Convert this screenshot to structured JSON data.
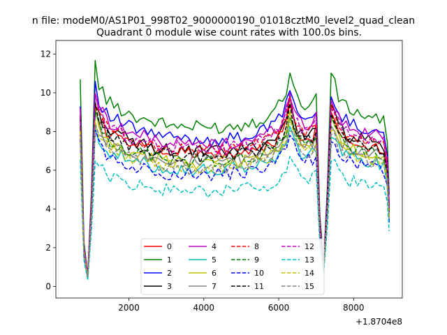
{
  "chart_data": {
    "type": "line",
    "suptitle": "n file: modeM0/AS1P01_998T02_9000000190_01018cztM0_level2_quad_clean",
    "title": "Quadrant 0 module wise count rates with 100.0s bins.",
    "xlabel": "",
    "ylabel": "",
    "offset_text": "+1.8704e8",
    "xlim": [
      50,
      9300
    ],
    "ylim": [
      -0.6,
      12.7
    ],
    "xticks": [
      2000,
      4000,
      6000,
      8000
    ],
    "xtick_labels": [
      "2000",
      "4000",
      "6000",
      "8000"
    ],
    "yticks": [
      0,
      2,
      4,
      6,
      8,
      10,
      12
    ],
    "ytick_labels": [
      "0",
      "2",
      "4",
      "6",
      "8",
      "10",
      "12"
    ],
    "grid": false,
    "legend_position": "lower center",
    "legend_columns": 4,
    "x": [
      700,
      800,
      900,
      1000,
      1100,
      1200,
      1300,
      1400,
      1500,
      1600,
      1700,
      1800,
      1900,
      2000,
      2100,
      2200,
      2300,
      2400,
      2500,
      2600,
      2700,
      2800,
      2900,
      3000,
      3100,
      3200,
      3300,
      3400,
      3500,
      3600,
      3700,
      3800,
      3900,
      4000,
      4100,
      4200,
      4300,
      4400,
      4500,
      4600,
      4700,
      4800,
      4900,
      5000,
      5100,
      5200,
      5300,
      5400,
      5500,
      5600,
      5700,
      5800,
      5900,
      6000,
      6100,
      6200,
      6300,
      6400,
      6500,
      6600,
      6700,
      6800,
      6900,
      7000,
      7100,
      7200,
      7300,
      7400,
      7500,
      7600,
      7700,
      7800,
      7900,
      8000,
      8100,
      8200,
      8300,
      8400,
      8500,
      8600,
      8700,
      8800,
      8900,
      8950
    ],
    "base_profile": [
      1.0,
      0.22,
      0.06,
      0.47,
      1.1,
      1.0,
      0.97,
      0.93,
      0.91,
      0.9,
      0.89,
      0.88,
      0.87,
      0.86,
      0.85,
      0.84,
      0.84,
      0.83,
      0.83,
      0.82,
      0.82,
      0.81,
      0.81,
      0.8,
      0.8,
      0.8,
      0.8,
      0.8,
      0.79,
      0.79,
      0.79,
      0.79,
      0.79,
      0.79,
      0.79,
      0.79,
      0.79,
      0.79,
      0.79,
      0.79,
      0.79,
      0.8,
      0.8,
      0.8,
      0.81,
      0.81,
      0.82,
      0.82,
      0.83,
      0.84,
      0.85,
      0.86,
      0.88,
      0.9,
      0.93,
      0.98,
      1.08,
      1.0,
      0.93,
      0.91,
      0.9,
      0.9,
      0.9,
      0.95,
      0.35,
      0.12,
      0.5,
      1.05,
      1.0,
      0.94,
      0.91,
      0.89,
      0.88,
      0.87,
      0.86,
      0.86,
      0.85,
      0.85,
      0.84,
      0.84,
      0.83,
      0.83,
      0.7,
      0.45
    ],
    "series": [
      {
        "name": "0",
        "color": "#ff0000",
        "dash": "solid",
        "scale": 8.6
      },
      {
        "name": "1",
        "color": "#008000",
        "dash": "solid",
        "scale": 10.4
      },
      {
        "name": "2",
        "color": "#0000ff",
        "dash": "solid",
        "scale": 9.6
      },
      {
        "name": "3",
        "color": "#000000",
        "dash": "solid",
        "scale": 8.8
      },
      {
        "name": "4",
        "color": "#bf00bf",
        "dash": "solid",
        "scale": 9.3
      },
      {
        "name": "5",
        "color": "#00bfbf",
        "dash": "solid",
        "scale": 7.6
      },
      {
        "name": "6",
        "color": "#bfbf00",
        "dash": "solid",
        "scale": 8.1
      },
      {
        "name": "7",
        "color": "#808080",
        "dash": "solid",
        "scale": 8.2
      },
      {
        "name": "8",
        "color": "#ff0000",
        "dash": "dashed",
        "scale": 8.9
      },
      {
        "name": "9",
        "color": "#008000",
        "dash": "dashed",
        "scale": 8.2
      },
      {
        "name": "10",
        "color": "#0000ff",
        "dash": "dashed",
        "scale": 7.3
      },
      {
        "name": "11",
        "color": "#000000",
        "dash": "dashed",
        "scale": 8.5
      },
      {
        "name": "12",
        "color": "#bf00bf",
        "dash": "dashed",
        "scale": 9.0
      },
      {
        "name": "13",
        "color": "#00bfbf",
        "dash": "dashed",
        "scale": 6.2
      },
      {
        "name": "14",
        "color": "#bfbf00",
        "dash": "dashed",
        "scale": 7.8
      },
      {
        "name": "15",
        "color": "#808080",
        "dash": "dashed",
        "scale": 7.7
      }
    ]
  }
}
